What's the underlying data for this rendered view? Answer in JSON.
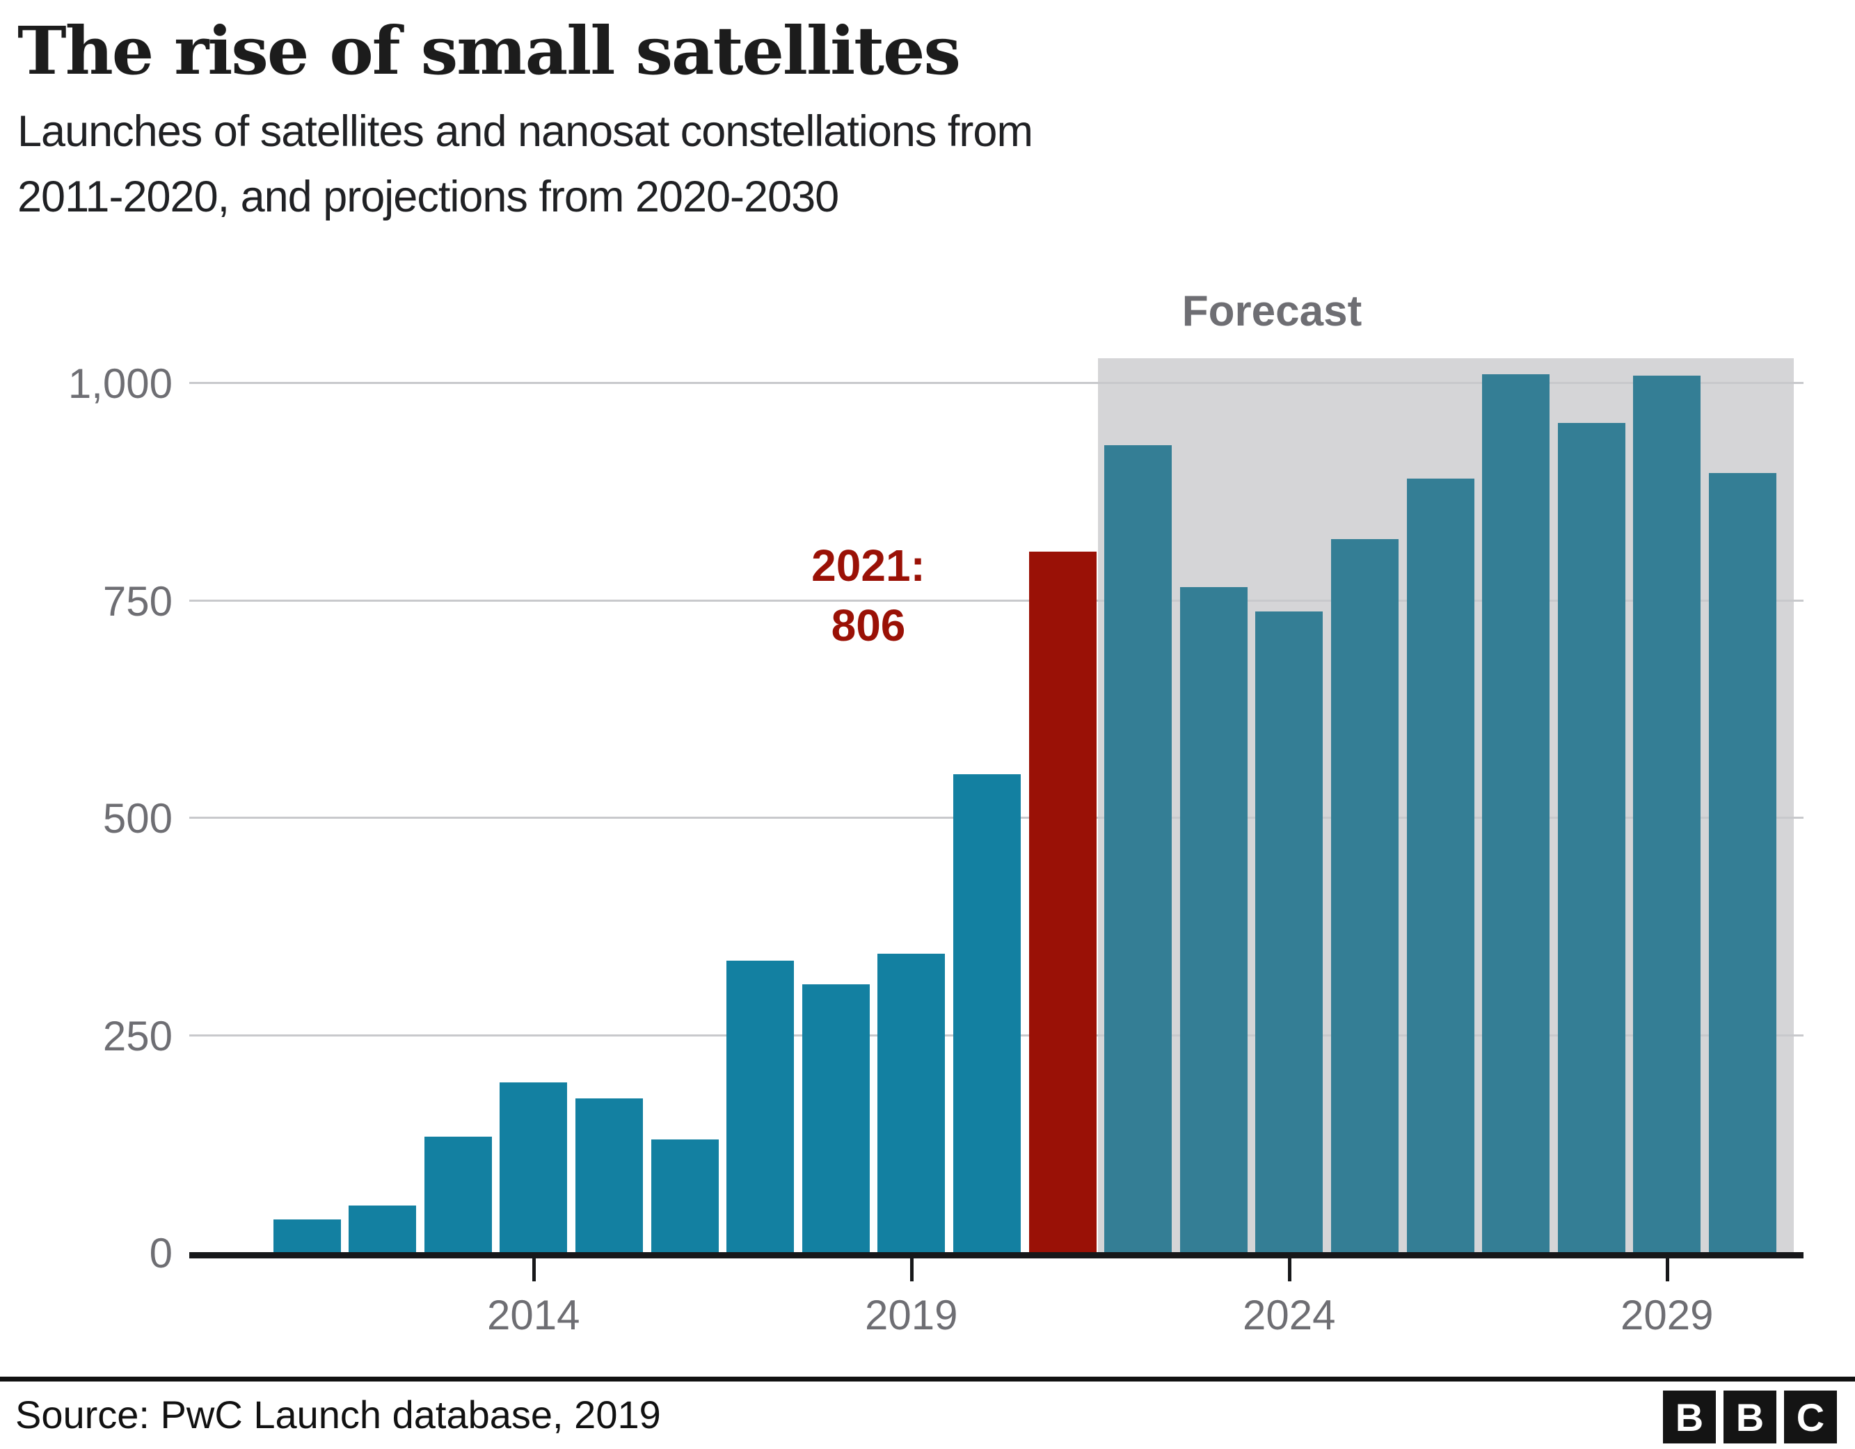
{
  "header": {
    "title": "The rise of small satellites",
    "subtitle_lines": [
      "Launches of satellites and nanosat constellations from",
      "2011-2020, and projections from 2020-2030"
    ]
  },
  "chart_data": {
    "type": "bar",
    "title": "The rise of small satellites",
    "subtitle": "Launches of satellites and nanosat constellations from 2011-2020, and projections from 2020-2030",
    "x": [
      2011,
      2012,
      2013,
      2014,
      2015,
      2016,
      2017,
      2018,
      2019,
      2020,
      2021,
      2022,
      2023,
      2024,
      2025,
      2026,
      2027,
      2028,
      2029,
      2030
    ],
    "values": [
      38,
      54,
      133,
      195,
      177,
      130,
      335,
      308,
      343,
      550,
      806,
      928,
      765,
      737,
      820,
      890,
      1010,
      954,
      1008,
      896
    ],
    "highlight": {
      "year": 2021,
      "value": 806,
      "label_lines": [
        "2021:",
        "806"
      ],
      "color": "#9a1106"
    },
    "forecast": {
      "label": "Forecast",
      "start_year": 2022,
      "end_year": 2030,
      "region_color": "#d5d5d7"
    },
    "yticks": [
      {
        "value": 0,
        "label": "0"
      },
      {
        "value": 250,
        "label": "250"
      },
      {
        "value": 500,
        "label": "500"
      },
      {
        "value": 750,
        "label": "750"
      },
      {
        "value": 1000,
        "label": "1,000"
      }
    ],
    "xticks": [
      2014,
      2019,
      2024,
      2029
    ],
    "ylim": [
      0,
      1028
    ],
    "grid": true,
    "legend": "none",
    "colors": {
      "bar": "#1380a1",
      "forecast_bar": "#347e95",
      "highlight_bar": "#9a1106",
      "forecast_region": "#d5d5d7",
      "gridline": "#c8c9cc",
      "axis": "#17181a",
      "tick_label": "#6e6e73"
    }
  },
  "footer": {
    "source": "Source: PwC Launch database, 2019",
    "logo_letters": [
      "B",
      "B",
      "C"
    ]
  }
}
